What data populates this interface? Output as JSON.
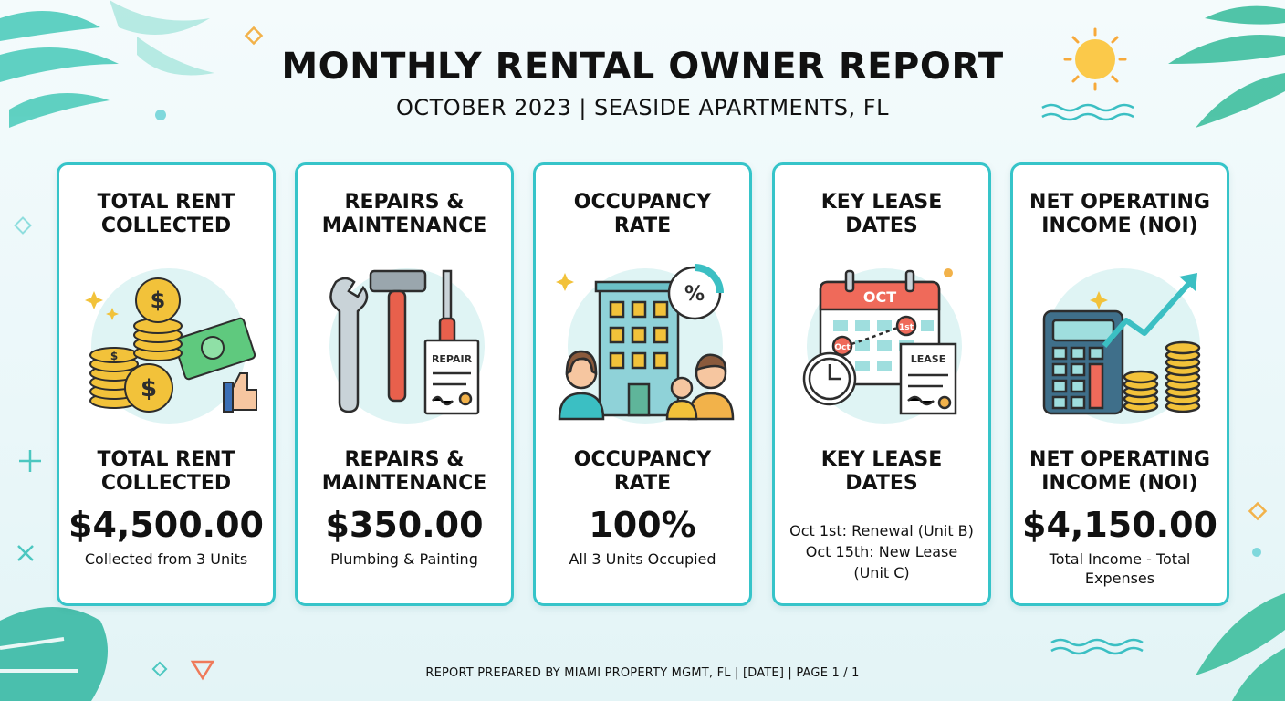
{
  "header": {
    "title": "MONTHLY RENTAL OWNER REPORT",
    "subtitle": "OCTOBER 2023 | SEASIDE APARTMENTS, FL"
  },
  "cards": [
    {
      "heading_line1": "TOTAL RENT",
      "heading_line2": "COLLECTED",
      "label_line1": "TOTAL RENT",
      "label_line2": "COLLECTED",
      "value": "$4,500.00",
      "note": "Collected from 3 Units",
      "icon": "money-stack-icon"
    },
    {
      "heading_line1": "REPAIRS &",
      "heading_line2": "MAINTENANCE",
      "label_line1": "REPAIRS &",
      "label_line2": "MAINTENANCE",
      "value": "$350.00",
      "note": "Plumbing & Painting",
      "icon": "tools-icon",
      "receipt_text": "REPAIR"
    },
    {
      "heading_line1": "OCCUPANCY",
      "heading_line2": "RATE",
      "label_line1": "OCCUPANCY",
      "label_line2": "RATE",
      "value": "100%",
      "note": "All 3 Units Occupied",
      "icon": "building-tenants-icon",
      "badge_text": "%"
    },
    {
      "heading_line1": "KEY LEASE",
      "heading_line2": "DATES",
      "label_line1": "KEY LEASE",
      "label_line2": "DATES",
      "line1": "Oct 1st: Renewal (Unit B)",
      "line2": "Oct 15th: New Lease",
      "line3": "(Unit C)",
      "icon": "calendar-lease-icon",
      "calendar_month": "OCT",
      "calendar_mark1": "1st",
      "calendar_mark2": "Oct",
      "document_text": "LEASE"
    },
    {
      "heading_line1": "NET OPERATING",
      "heading_line2": "INCOME (NOI)",
      "label_line1": "NET OPERATING",
      "label_line2": "INCOME (NOI)",
      "value": "$4,150.00",
      "note": "Total Income - Total Expenses",
      "icon": "calculator-growth-icon"
    }
  ],
  "footer": {
    "text": "REPORT PREPARED BY MIAMI PROPERTY MGMT, FL | [DATE] | PAGE 1 / 1"
  },
  "colors": {
    "card_border": "#36c4c9",
    "accent_teal": "#3bbfc3",
    "coin_gold": "#f2c23a",
    "tool_red": "#e8604c"
  }
}
